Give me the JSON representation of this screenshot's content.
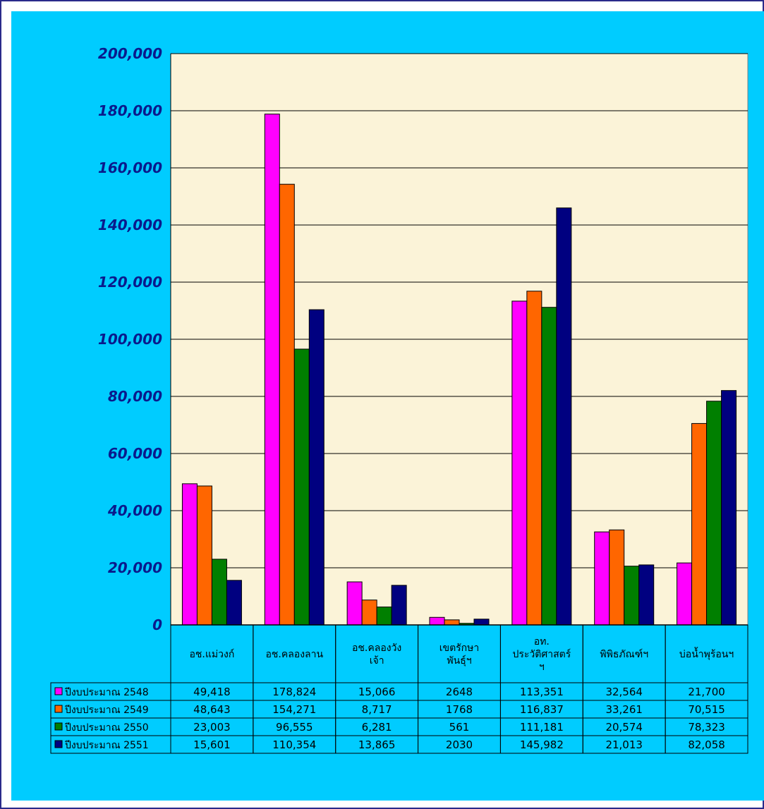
{
  "colors": {
    "background": "#00ccff",
    "plot_area": "#fbf3d8",
    "axis_text": "#0a1a8c",
    "series": [
      "#ff00ff",
      "#ff6600",
      "#007f00",
      "#000080"
    ]
  },
  "chart_data": {
    "type": "bar",
    "categories": [
      [
        "อช.แม่วงก์"
      ],
      [
        "อช.คลองลาน"
      ],
      [
        "อช.คลองวัง",
        "เจ้า"
      ],
      [
        "เขตรักษา",
        "พันธุ์ฯ"
      ],
      [
        "อท.",
        "ประวัติศาสตร์",
        "ฯ"
      ],
      [
        "พิพิธภัณฑ์ฯ"
      ],
      [
        "บ่อน้ำพุร้อนฯ"
      ]
    ],
    "series": [
      {
        "name": "ปีงบประมาณ 2548",
        "values": [
          49418,
          178824,
          15066,
          2648,
          113351,
          32564,
          21700
        ],
        "labels": [
          "49,418",
          "178,824",
          "15,066",
          "2648",
          "113,351",
          "32,564",
          "21,700"
        ]
      },
      {
        "name": "ปีงบประมาณ 2549",
        "values": [
          48643,
          154271,
          8717,
          1768,
          116837,
          33261,
          70515
        ],
        "labels": [
          "48,643",
          "154,271",
          "8,717",
          "1768",
          "116,837",
          "33,261",
          "70,515"
        ]
      },
      {
        "name": "ปีงบประมาณ 2550",
        "values": [
          23003,
          96555,
          6281,
          561,
          111181,
          20574,
          78323
        ],
        "labels": [
          "23,003",
          "96,555",
          "6,281",
          "561",
          "111,181",
          "20,574",
          "78,323"
        ]
      },
      {
        "name": "ปีงบประมาณ 2551",
        "values": [
          15601,
          110354,
          13865,
          2030,
          145982,
          21013,
          82058
        ],
        "labels": [
          "15,601",
          "110,354",
          "13,865",
          "2030",
          "145,982",
          "21,013",
          "82,058"
        ]
      }
    ],
    "yticks": [
      "0",
      "20,000",
      "40,000",
      "60,000",
      "80,000",
      "100,000",
      "120,000",
      "140,000",
      "160,000",
      "180,000",
      "200,000"
    ],
    "ylim": [
      0,
      200000
    ],
    "grid": true,
    "legend": "data-table"
  }
}
